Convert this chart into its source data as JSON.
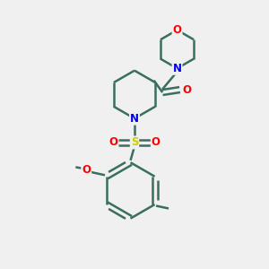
{
  "background_color": "#f0f0f0",
  "bond_color": "#3a6e60",
  "bond_width": 1.8,
  "atom_colors": {
    "O": "#ff0000",
    "N": "#0000ee",
    "S": "#cccc00",
    "C": "#3a6e60"
  },
  "font_size": 8.5,
  "fig_width": 3.0,
  "fig_height": 3.0,
  "xlim": [
    0,
    10
  ],
  "ylim": [
    0,
    10
  ]
}
